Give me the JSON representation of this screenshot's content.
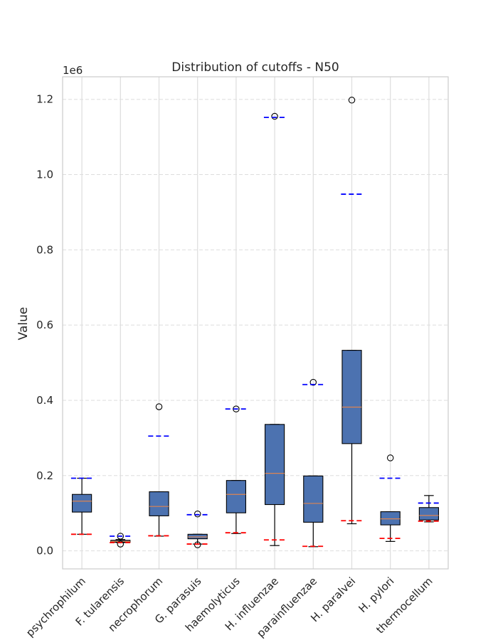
{
  "chart_data": {
    "type": "box",
    "title": "Distribution of cutoffs - N50",
    "xlabel": "",
    "ylabel": "Value",
    "y_offset_label": "1e6",
    "ylim": [
      -0.048,
      1.26
    ],
    "yticks": [
      "0.0",
      "0.2",
      "0.4",
      "0.6",
      "0.8",
      "1.0",
      "1.2"
    ],
    "ytick_values": [
      0,
      0.2,
      0.4,
      0.6,
      0.8,
      1.0,
      1.2
    ],
    "grid": true,
    "colors": {
      "box_fill": "#4c72b0",
      "median": "#dd8452",
      "upper_cutoff": "#0000ff",
      "lower_cutoff": "#ff0000",
      "grid": "#dddddd",
      "axes": "#cccccc"
    },
    "series": [
      {
        "label": "psychrophilum",
        "q1": 0.103,
        "median": 0.132,
        "q3": 0.15,
        "whisker_low": 0.044,
        "whisker_high": 0.193,
        "outliers": [],
        "upper_cutoff": 0.193,
        "lower_cutoff": 0.044
      },
      {
        "label": "F. tularensis",
        "q1": 0.023,
        "median": 0.025,
        "q3": 0.028,
        "whisker_low": 0.022,
        "whisker_high": 0.03,
        "outliers": [
          0.039,
          0.018
        ],
        "upper_cutoff": 0.039,
        "lower_cutoff": 0.022
      },
      {
        "label": "necrophorum",
        "q1": 0.093,
        "median": 0.118,
        "q3": 0.157,
        "whisker_low": 0.039,
        "whisker_high": 0.157,
        "outliers": [
          0.383
        ],
        "upper_cutoff": 0.305,
        "lower_cutoff": 0.04
      },
      {
        "label": "G. parasuis",
        "q1": 0.032,
        "median": 0.037,
        "q3": 0.044,
        "whisker_low": 0.018,
        "whisker_high": 0.044,
        "outliers": [
          0.098,
          0.016
        ],
        "upper_cutoff": 0.096,
        "lower_cutoff": 0.018
      },
      {
        "label": "haemolyticus",
        "q1": 0.101,
        "median": 0.15,
        "q3": 0.187,
        "whisker_low": 0.046,
        "whisker_high": 0.187,
        "outliers": [
          0.377
        ],
        "upper_cutoff": 0.377,
        "lower_cutoff": 0.048
      },
      {
        "label": "H. influenzae",
        "q1": 0.123,
        "median": 0.206,
        "q3": 0.336,
        "whisker_low": 0.014,
        "whisker_high": 0.336,
        "outliers": [
          1.155
        ],
        "upper_cutoff": 1.152,
        "lower_cutoff": 0.029
      },
      {
        "label": "parainfluenzae",
        "q1": 0.076,
        "median": 0.126,
        "q3": 0.199,
        "whisker_low": 0.011,
        "whisker_high": 0.199,
        "outliers": [
          0.448
        ],
        "upper_cutoff": 0.442,
        "lower_cutoff": 0.012
      },
      {
        "label": "H. paralvei",
        "q1": 0.285,
        "median": 0.382,
        "q3": 0.533,
        "whisker_low": 0.072,
        "whisker_high": 0.533,
        "outliers": [
          1.198
        ],
        "upper_cutoff": 0.948,
        "lower_cutoff": 0.08
      },
      {
        "label": "H. pylori",
        "q1": 0.069,
        "median": 0.085,
        "q3": 0.104,
        "whisker_low": 0.025,
        "whisker_high": 0.104,
        "outliers": [
          0.247
        ],
        "upper_cutoff": 0.193,
        "lower_cutoff": 0.033
      },
      {
        "label": "thermocellum",
        "q1": 0.082,
        "median": 0.094,
        "q3": 0.115,
        "whisker_low": 0.077,
        "whisker_high": 0.147,
        "outliers": [],
        "upper_cutoff": 0.127,
        "lower_cutoff": 0.079
      }
    ]
  }
}
